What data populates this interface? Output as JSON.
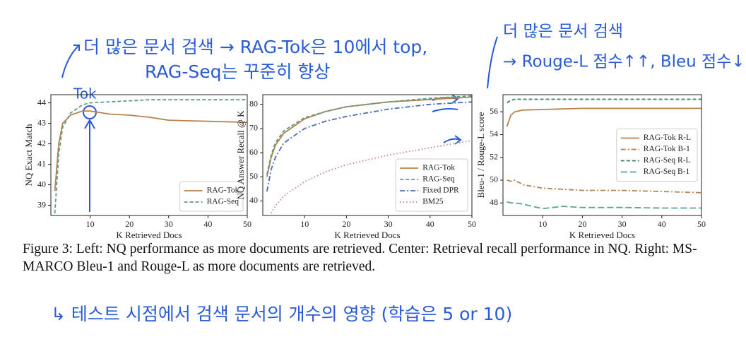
{
  "chart_data": [
    {
      "type": "line",
      "ylabel": "NQ Exact Match",
      "xlabel": "K Retrieved Docs",
      "x": [
        1,
        2,
        3,
        5,
        8,
        10,
        15,
        20,
        25,
        30,
        40,
        50
      ],
      "xlim": [
        0,
        50
      ],
      "xticks": [
        10,
        20,
        30,
        40,
        50
      ],
      "ylim": [
        38.5,
        44.4
      ],
      "yticks": [
        39,
        40,
        41,
        42,
        43,
        44
      ],
      "legend": "lower right",
      "series": [
        {
          "name": "RAG-Tok",
          "color": "#b8834f",
          "linestyle": "solid",
          "values": [
            39.7,
            42.0,
            43.0,
            43.4,
            43.6,
            43.6,
            43.45,
            43.4,
            43.3,
            43.15,
            43.1,
            43.05
          ]
        },
        {
          "name": "RAG-Seq",
          "color": "#5f9c80",
          "linestyle": "dashed",
          "values": [
            38.6,
            41.5,
            42.8,
            43.5,
            43.9,
            44.0,
            44.05,
            44.1,
            44.15,
            44.15,
            44.15,
            44.15
          ]
        }
      ]
    },
    {
      "type": "line",
      "ylabel": "NQ Answer Recall @ K",
      "xlabel": "K Retrieved Docs",
      "x": [
        1,
        2,
        3,
        5,
        10,
        15,
        20,
        30,
        40,
        50
      ],
      "xlim": [
        0,
        50
      ],
      "xticks": [
        10,
        20,
        30,
        40,
        50
      ],
      "ylim": [
        34,
        84
      ],
      "yticks": [
        40,
        50,
        60,
        70,
        80
      ],
      "legend": "lower right",
      "series": [
        {
          "name": "RAG-Tok",
          "color": "#b8834f",
          "linestyle": "solid",
          "values": [
            50,
            58,
            63,
            68,
            74,
            77,
            79,
            81,
            82,
            83
          ]
        },
        {
          "name": "RAG-Seq",
          "color": "#5f9c80",
          "linestyle": "dashed",
          "values": [
            51,
            59,
            64,
            69,
            74.5,
            77,
            79,
            81,
            82.5,
            83.5
          ]
        },
        {
          "name": "Fixed DPR",
          "color": "#4a6cb3",
          "linestyle": "dashdot",
          "values": [
            44,
            53,
            58,
            64,
            70,
            73,
            75,
            78,
            80,
            81
          ]
        },
        {
          "name": "BM25",
          "color": "#c57f9c",
          "linestyle": "dotted",
          "values": [
            null,
            35,
            38,
            42,
            48,
            52,
            55,
            59,
            62,
            65
          ]
        }
      ]
    },
    {
      "type": "line",
      "ylabel": "Bleu-1 / Rouge-L score",
      "xlabel": "K Retrieved Docs",
      "x": [
        1,
        2,
        3,
        5,
        10,
        15,
        20,
        30,
        40,
        50
      ],
      "xlim": [
        0,
        50
      ],
      "xticks": [
        10,
        20,
        30,
        40,
        50
      ],
      "ylim": [
        46.9,
        57.5
      ],
      "yticks": [
        48,
        50,
        52,
        54,
        56
      ],
      "legend": "center right",
      "series": [
        {
          "name": "RAG-Tok R-L",
          "color": "#b8834f",
          "linestyle": "solid",
          "values": [
            54.7,
            55.7,
            56.0,
            56.15,
            56.2,
            56.25,
            56.3,
            56.3,
            56.3,
            56.3
          ]
        },
        {
          "name": "RAG-Tok B-1",
          "color": "#b8834f",
          "linestyle": "dashdot",
          "values": [
            50.0,
            49.9,
            50.0,
            49.6,
            49.3,
            49.2,
            49.1,
            49.1,
            49.0,
            48.9
          ]
        },
        {
          "name": "RAG-Seq R-L",
          "color": "#3f7a6a",
          "linestyle": "dashed",
          "values": [
            56.8,
            57.0,
            57.1,
            57.1,
            57.1,
            57.1,
            57.1,
            57.1,
            57.1,
            57.1
          ]
        },
        {
          "name": "RAG-Seq B-1",
          "color": "#5aa58a",
          "linestyle": "longdash",
          "values": [
            48.1,
            48.0,
            48.0,
            47.9,
            47.5,
            47.7,
            47.6,
            47.6,
            47.55,
            47.55
          ]
        }
      ]
    }
  ],
  "caption": "Figure 3: Left: NQ performance as more documents are retrieved. Center: Retrieval recall performance in NQ. Right: MS-MARCO Bleu-1 and Rouge-L as more documents are retrieved.",
  "annotations": [
    "더 많은 문서 검색 → RAG-Tok은 10에서 top,",
    "RAG-Seq는 꾸준히 향상",
    "Tok",
    "더 많은 문서 검색",
    "→ Rouge-L 점수↑↑, Bleu 점수↓↓",
    "↳ 테스트 시점에서 검색 문서의 개수의 영향 (학습은 5 or 10)"
  ]
}
